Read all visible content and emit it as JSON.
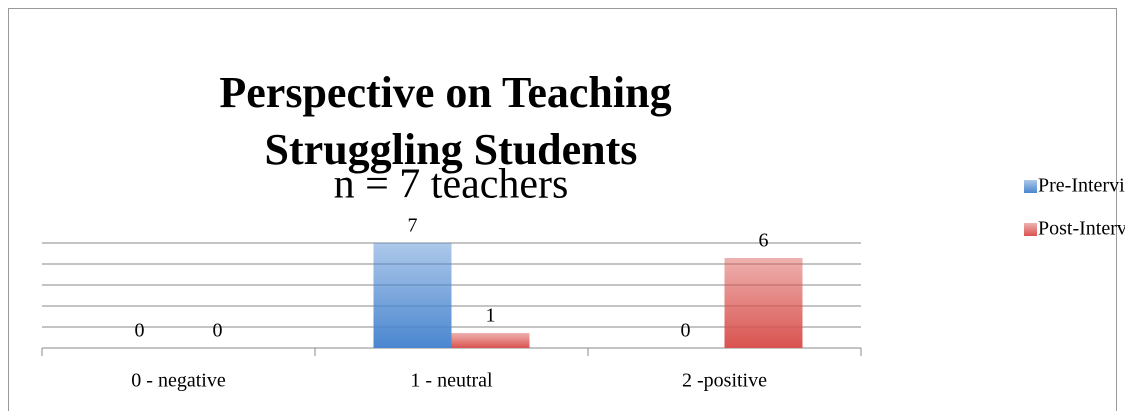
{
  "chart_data": {
    "type": "bar",
    "title": "Perspective on Teaching Struggling Students",
    "subtitle": "n = 7 teachers",
    "categories": [
      "0 - negative",
      "1 - neutral",
      "2 -positive"
    ],
    "series": [
      {
        "name": "Pre-Interview",
        "color": "#4a86d0",
        "values": [
          0,
          7,
          0
        ]
      },
      {
        "name": "Post-Interview",
        "color": "#d9534f",
        "values": [
          0,
          1,
          6
        ]
      }
    ],
    "ylim": [
      0,
      7
    ],
    "yticks": [
      0,
      1.4,
      2.8,
      4.2,
      5.6,
      7
    ],
    "grid": true,
    "legend": "right"
  }
}
